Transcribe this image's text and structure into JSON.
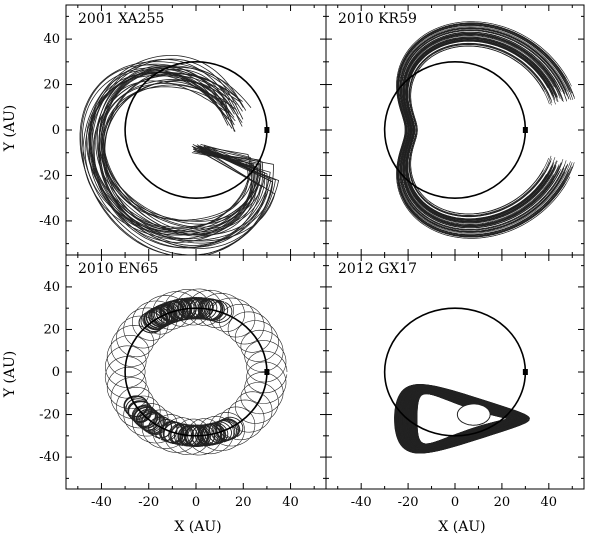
{
  "figure": {
    "xlabel": "X (AU)",
    "ylabel": "Y (AU)"
  },
  "chart_data": [
    {
      "type": "line",
      "title": "2001 XA255",
      "xlabel": "",
      "ylabel": "Y (AU)",
      "xlim": [
        -55,
        55
      ],
      "ylim": [
        -55,
        55
      ],
      "xticks": [],
      "yticks": [
        "40",
        "20",
        "0",
        "-20",
        "-40"
      ],
      "reference_circle": {
        "cx": 0,
        "cy": 0,
        "r": 30
      },
      "planet_marker": {
        "x": 30,
        "y": 0
      },
      "pattern": "sparse-tadpole-loops",
      "grid": false
    },
    {
      "type": "line",
      "title": "2010 KR59",
      "xlabel": "",
      "ylabel": "",
      "xlim": [
        -55,
        55
      ],
      "ylim": [
        -55,
        55
      ],
      "xticks": [],
      "yticks": [],
      "reference_circle": {
        "cx": 0,
        "cy": 0,
        "r": 30
      },
      "planet_marker": {
        "x": 30,
        "y": 0
      },
      "pattern": "dense-horseshoe-band",
      "grid": false
    },
    {
      "type": "line",
      "title": "2010 EN65",
      "xlabel": "X (AU)",
      "ylabel": "Y (AU)",
      "xlim": [
        -55,
        55
      ],
      "ylim": [
        -55,
        55
      ],
      "xticks": [
        "-40",
        "-20",
        "0",
        "20",
        "40"
      ],
      "yticks": [
        "40",
        "20",
        "0",
        "-20",
        "-40"
      ],
      "reference_circle": {
        "cx": 0,
        "cy": 0,
        "r": 30
      },
      "planet_marker": {
        "x": 30,
        "y": 0
      },
      "pattern": "ring-of-epicycles",
      "grid": false
    },
    {
      "type": "line",
      "title": "2012 GX17",
      "xlabel": "X (AU)",
      "ylabel": "",
      "xlim": [
        -55,
        55
      ],
      "ylim": [
        -55,
        55
      ],
      "xticks": [
        "-40",
        "-20",
        "0",
        "20",
        "40"
      ],
      "yticks": [],
      "reference_circle": {
        "cx": 0,
        "cy": 0,
        "r": 30
      },
      "planet_marker": {
        "x": 30,
        "y": 0
      },
      "pattern": "dense-trailing-lobe",
      "grid": false
    }
  ]
}
